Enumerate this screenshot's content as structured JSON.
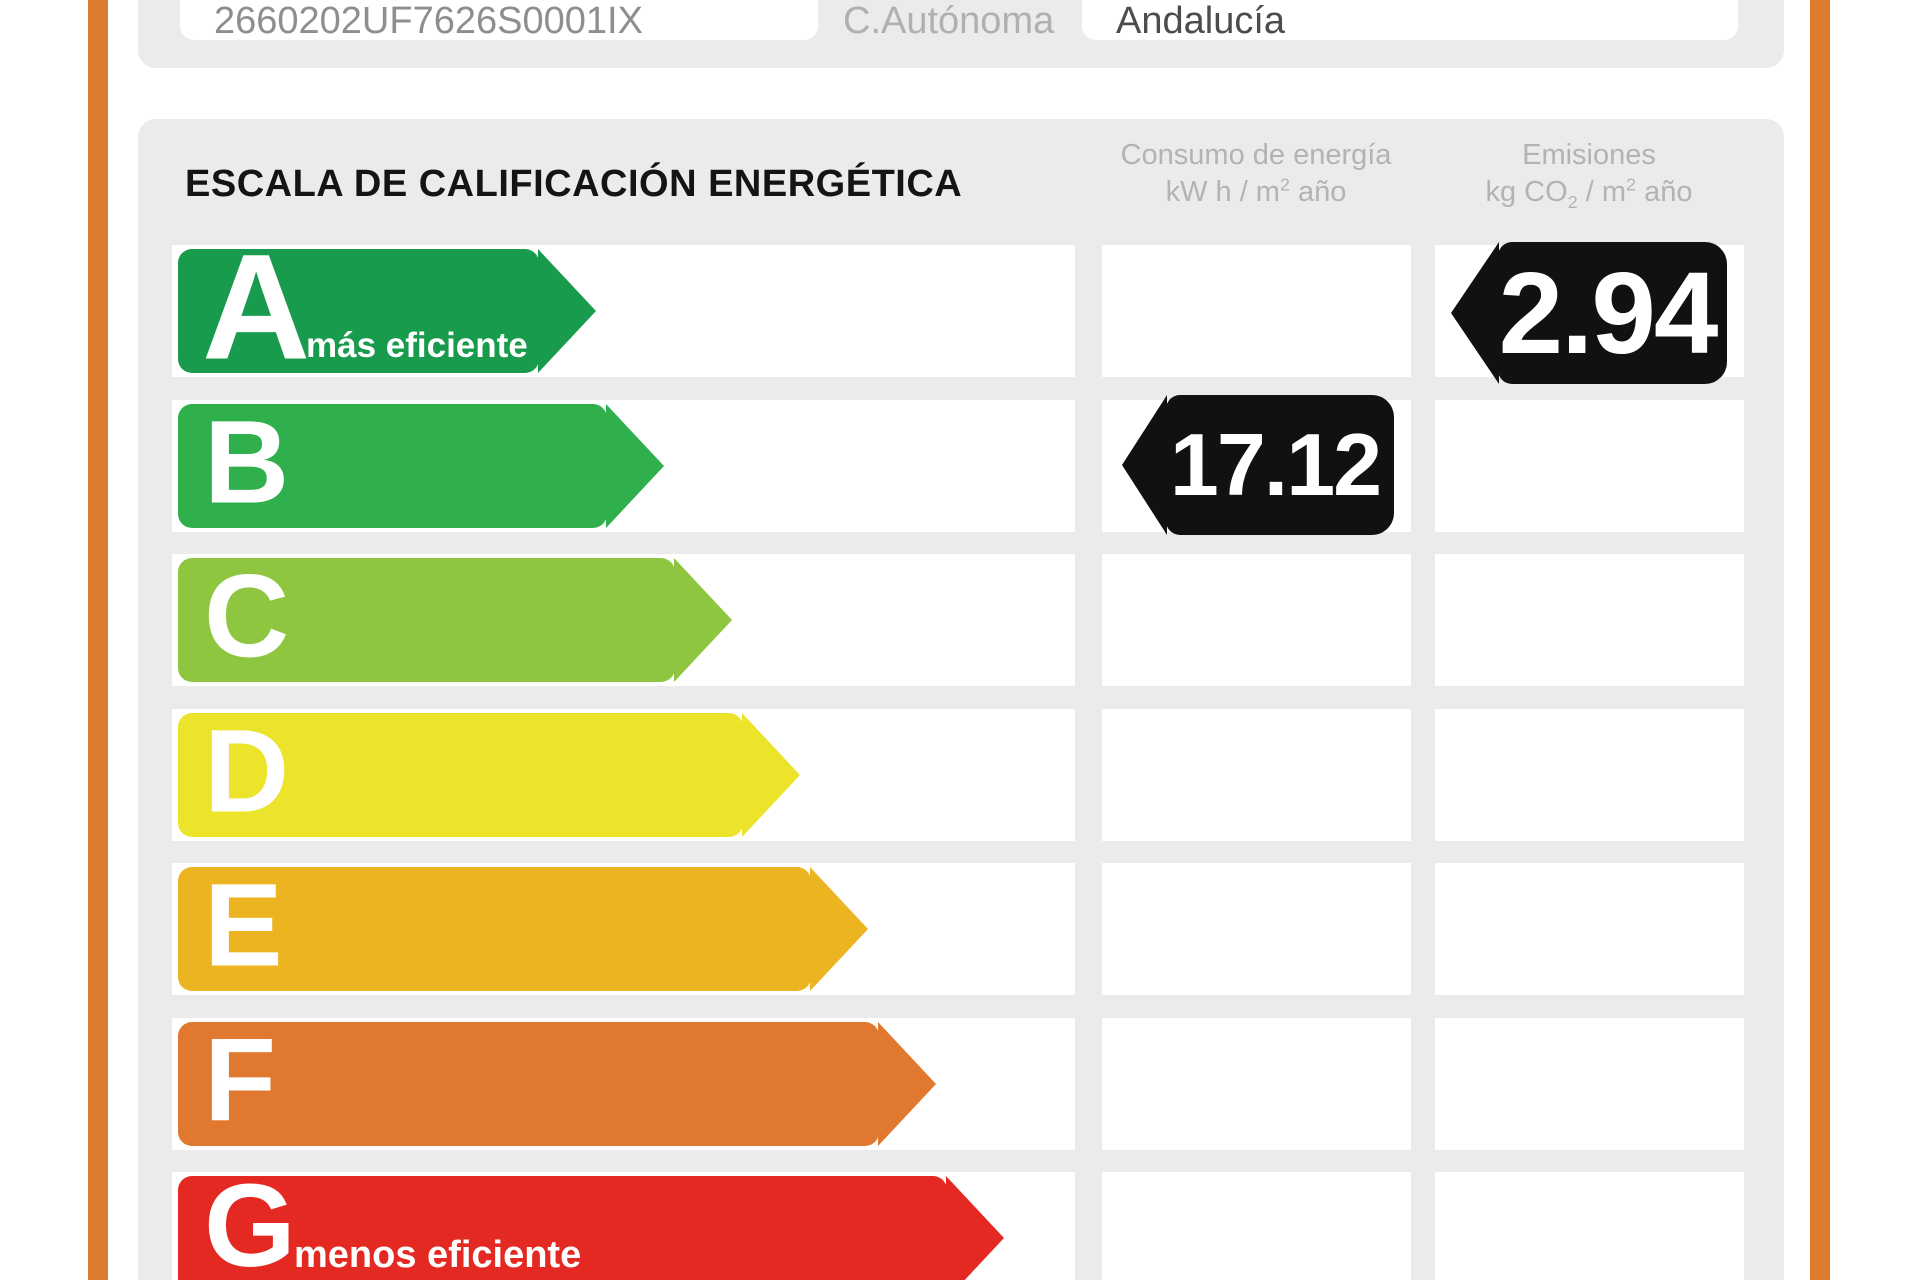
{
  "form": {
    "cadastral_reference": {
      "value": "2660202UF7626S0001IX"
    },
    "autonomous_community": {
      "label": "C.Autónoma",
      "value": "Andalucía"
    }
  },
  "scale": {
    "title": "ESCALA DE CALIFICACIÓN ENERGÉTICA",
    "columns": {
      "consumption": {
        "title": "Consumo de energía",
        "unit_base": "kW h / m",
        "unit_sup": "2",
        "unit_suffix": " año"
      },
      "emissions": {
        "title": "Emisiones",
        "unit_base": "kg CO",
        "unit_sub": "2",
        "unit_mid": " / m",
        "unit_sup": "2",
        "unit_suffix": " año"
      }
    },
    "ratings": [
      {
        "letter": "A",
        "label": "más eficiente",
        "color": "#189b4d"
      },
      {
        "letter": "B",
        "label": "",
        "color": "#2fb04c"
      },
      {
        "letter": "C",
        "label": "",
        "color": "#8ec63f"
      },
      {
        "letter": "D",
        "label": "",
        "color": "#ece32b"
      },
      {
        "letter": "E",
        "label": "",
        "color": "#ecb420"
      },
      {
        "letter": "F",
        "label": "",
        "color": "#e0782f"
      },
      {
        "letter": "G",
        "label": "menos eficiente",
        "color": "#e42822"
      }
    ],
    "values": {
      "consumption": {
        "value": "17.12",
        "rating_row": "B"
      },
      "emissions": {
        "value": "2.94",
        "rating_row": "A"
      }
    }
  },
  "colors": {
    "frame_orange": "#dc7b2d",
    "card_gray": "#ebebeb",
    "badge_black": "#111111"
  }
}
